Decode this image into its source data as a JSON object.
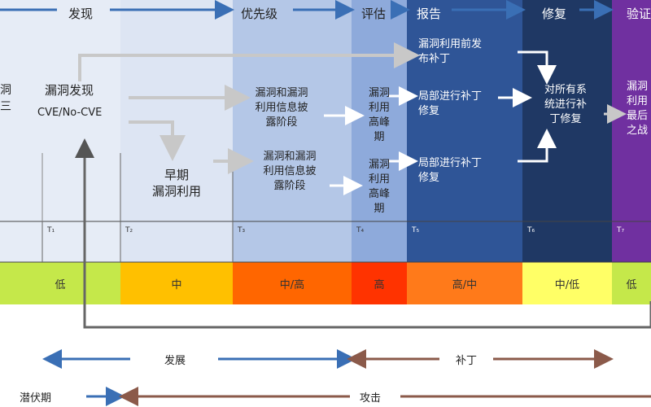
{
  "phases": {
    "discovery": "发现",
    "priority": "优先级",
    "assessment": "评估",
    "report": "报告",
    "repair": "修复",
    "verify": "验证"
  },
  "nodes": {
    "left_partial_1": "洞",
    "left_partial_2": "三",
    "vuln_discovery": "漏洞发现",
    "cve": "CVE/No-CVE",
    "early_exploit_1": "早期",
    "early_exploit_2": "漏洞利用",
    "disclose_1_a": "漏洞和漏洞",
    "disclose_1_b": "利用信息披",
    "disclose_1_c": "露阶段",
    "disclose_2_a": "漏洞和漏洞",
    "disclose_2_b": "利用信息披",
    "disclose_2_c": "露阶段",
    "peak_1_a": "漏洞",
    "peak_1_b": "利用",
    "peak_1_c": "高峰",
    "peak_1_d": "期",
    "peak_2_a": "漏洞",
    "peak_2_b": "利用",
    "peak_2_c": "高峰",
    "peak_2_d": "期",
    "prerelease_a": "漏洞利用前发",
    "prerelease_b": "布补丁",
    "partial_1_a": "局部进行补丁",
    "partial_1_b": "修复",
    "partial_2_a": "局部进行补丁",
    "partial_2_b": "修复",
    "all_systems_a": "对所有系",
    "all_systems_b": "统进行补",
    "all_systems_c": "丁修复",
    "final_a": "漏洞",
    "final_b": "利用",
    "final_c": "最后",
    "final_d": "之战"
  },
  "ticks": [
    "T₁",
    "T₂",
    "T₃",
    "T₄",
    "T₅",
    "T₆",
    "T₇"
  ],
  "levels": [
    "低",
    "中",
    "中/高",
    "高",
    "高/中",
    "中/低",
    "低"
  ],
  "level_colors": [
    "#c5e84a",
    "#ffc000",
    "#ff6600",
    "#ff3300",
    "#ff7a1a",
    "#ffff66",
    "#c5e84a"
  ],
  "column_colors": {
    "c0": "#e6ecf6",
    "c1": "#dde5f3",
    "c2": "#b4c7e7",
    "c3": "#8eaadb",
    "c4": "#2f5597",
    "c5": "#1f3864",
    "c6": "#7030a0"
  },
  "bottom": {
    "develop": "发展",
    "patch": "补丁",
    "latent": "潜伏期",
    "attack": "攻击"
  }
}
